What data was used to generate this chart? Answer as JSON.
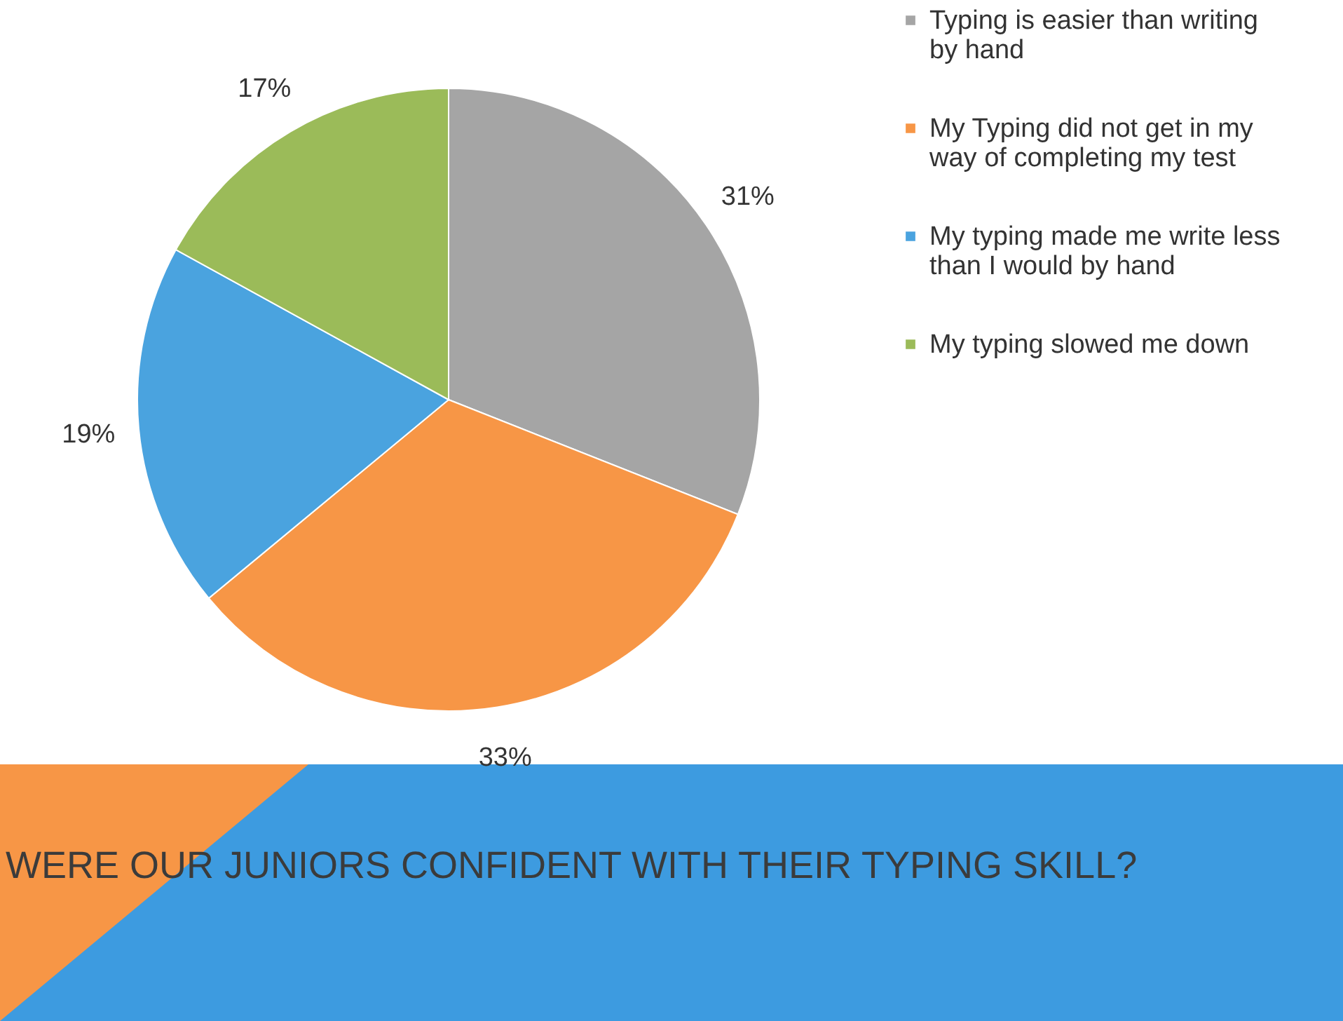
{
  "chart_data": {
    "type": "pie",
    "title": "WERE OUR JUNIORS CONFIDENT WITH THEIR TYPING SKILL?",
    "categories": [
      "Typing is easier than writing by hand",
      "My Typing did not get in my way of completing my test",
      "My typing made me write less than I would by hand",
      "My typing slowed me down"
    ],
    "values": [
      31,
      33,
      19,
      17
    ],
    "colors": [
      "#a5a5a5",
      "#f79646",
      "#4aa3df",
      "#9bbb59"
    ],
    "value_labels": [
      "31%",
      "33%",
      "19%",
      "17%"
    ],
    "legend": "right"
  }
}
